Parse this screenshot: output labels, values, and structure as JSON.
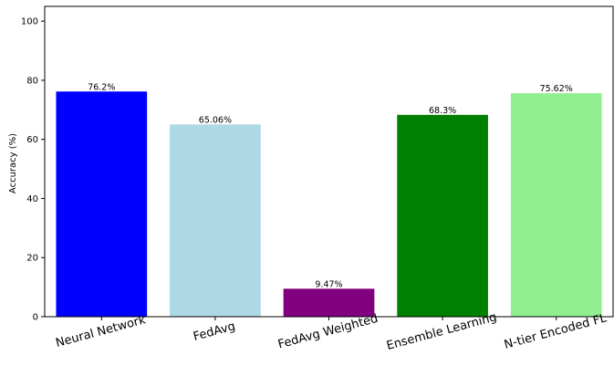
{
  "chart_data": {
    "type": "bar",
    "title": "",
    "xlabel": "",
    "ylabel": "Accuracy (%)",
    "ylim": [
      0,
      105
    ],
    "yticks": [
      0,
      20,
      40,
      60,
      80,
      100
    ],
    "grid": false,
    "categories": [
      "Neural Network",
      "FedAvg",
      "FedAvg Weighted",
      "Ensemble Learning",
      "N-tier Encoded FL"
    ],
    "values": [
      76.2,
      65.06,
      9.47,
      68.3,
      75.62
    ],
    "value_labels": [
      "76.2%",
      "65.06%",
      "9.47%",
      "68.3%",
      "75.62%"
    ],
    "colors": [
      "#0000ff",
      "#add8e6",
      "#800080",
      "#008000",
      "#90ee90"
    ]
  }
}
